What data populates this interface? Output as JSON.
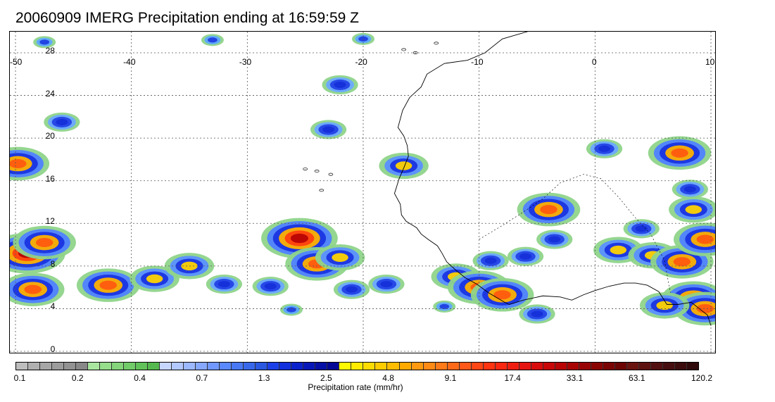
{
  "title": "20060909 IMERG Precipitation ending at 16:59:59 Z",
  "map": {
    "lon_labels": [
      "-50",
      "-40",
      "-30",
      "-20",
      "-10",
      "0",
      "10"
    ],
    "lon_values": [
      -50,
      -40,
      -30,
      -20,
      -10,
      0,
      10
    ],
    "lat_labels": [
      "28",
      "24",
      "20",
      "16",
      "12",
      "8",
      "4",
      "0"
    ],
    "lat_values": [
      28,
      24,
      20,
      16,
      12,
      8,
      4,
      0
    ],
    "lon_range": [
      -50,
      10
    ],
    "lat_range": [
      -0.5,
      29.5
    ],
    "gridlines": "dotted",
    "coastline_color": "#000000"
  },
  "colorbar": {
    "title": "Precipitation rate (mm/hr)",
    "tick_labels": [
      "0.1",
      "0.2",
      "0.4",
      "0.7",
      "1.3",
      "2.5",
      "4.8",
      "9.1",
      "17.4",
      "33.1",
      "63.1",
      "120.2"
    ],
    "colors": [
      "#bdbdbd",
      "#b0b0b0",
      "#a6a6a6",
      "#9c9c9c",
      "#929292",
      "#888888",
      "#a8e6a0",
      "#96dd8c",
      "#84d47a",
      "#72cb69",
      "#62c25a",
      "#54b84e",
      "#c6d6ff",
      "#b2c8ff",
      "#9cb8ff",
      "#86a8ff",
      "#7098ff",
      "#5a88ff",
      "#4878f4",
      "#3868ea",
      "#2a58e0",
      "#1c40e8",
      "#1230dc",
      "#0a22cc",
      "#0818b8",
      "#0610a6",
      "#040894",
      "#fffa00",
      "#ffec00",
      "#ffdc00",
      "#ffcc00",
      "#ffbc00",
      "#ffaa00",
      "#ff9a10",
      "#ff8a14",
      "#ff7a18",
      "#ff6a18",
      "#ff5818",
      "#ff4614",
      "#ff3410",
      "#fa2810",
      "#f01e10",
      "#e41410",
      "#d80c0c",
      "#c80808",
      "#b80404",
      "#a80404",
      "#980404",
      "#8a0404",
      "#7a0404",
      "#6c0404",
      "#6a1410",
      "#5e1210",
      "#521010",
      "#460e0e",
      "#3c0c0c",
      "#300a0a"
    ]
  },
  "precip_cells": [
    {
      "lon": -49,
      "lat": 9.2,
      "level": 4
    },
    {
      "lon": -47.5,
      "lat": 10.2,
      "level": 3
    },
    {
      "lon": -48.5,
      "lat": 5.8,
      "level": 3
    },
    {
      "lon": -49.8,
      "lat": 17.6,
      "level": 3
    },
    {
      "lon": -46,
      "lat": 21.5,
      "level": 1
    },
    {
      "lon": -42,
      "lat": 6.2,
      "level": 3
    },
    {
      "lon": -38,
      "lat": 6.8,
      "level": 2
    },
    {
      "lon": -35,
      "lat": 8.0,
      "level": 2
    },
    {
      "lon": -32,
      "lat": 6.3,
      "level": 1
    },
    {
      "lon": -28,
      "lat": 6.1,
      "level": 1
    },
    {
      "lon": -25.5,
      "lat": 10.6,
      "level": 4
    },
    {
      "lon": -24,
      "lat": 8.2,
      "level": 3
    },
    {
      "lon": -22,
      "lat": 8.8,
      "level": 2
    },
    {
      "lon": -21,
      "lat": 5.8,
      "level": 1
    },
    {
      "lon": -18,
      "lat": 6.3,
      "level": 1
    },
    {
      "lon": -26.2,
      "lat": 3.9,
      "level": 0
    },
    {
      "lon": -22,
      "lat": 25.0,
      "level": 1
    },
    {
      "lon": -23,
      "lat": 20.8,
      "level": 1
    },
    {
      "lon": -16.5,
      "lat": 17.4,
      "level": 2
    },
    {
      "lon": -12,
      "lat": 7.0,
      "level": 2
    },
    {
      "lon": -10,
      "lat": 6.0,
      "level": 3
    },
    {
      "lon": -8,
      "lat": 5.3,
      "level": 3
    },
    {
      "lon": -9,
      "lat": 8.5,
      "level": 1
    },
    {
      "lon": -4,
      "lat": 13.3,
      "level": 3
    },
    {
      "lon": -3.5,
      "lat": 10.5,
      "level": 1
    },
    {
      "lon": -6,
      "lat": 8.9,
      "level": 1
    },
    {
      "lon": 2,
      "lat": 9.5,
      "level": 2
    },
    {
      "lon": 5,
      "lat": 9.0,
      "level": 2
    },
    {
      "lon": 7.5,
      "lat": 8.4,
      "level": 3
    },
    {
      "lon": 8.5,
      "lat": 13.3,
      "level": 2
    },
    {
      "lon": 7.3,
      "lat": 18.6,
      "level": 3
    },
    {
      "lon": 8.5,
      "lat": 5.0,
      "level": 3
    },
    {
      "lon": 9.5,
      "lat": 4.0,
      "level": 3
    },
    {
      "lon": 6,
      "lat": 4.3,
      "level": 2
    },
    {
      "lon": 9.5,
      "lat": 10.5,
      "level": 3
    },
    {
      "lon": 8.2,
      "lat": 15.2,
      "level": 1
    },
    {
      "lon": 0.8,
      "lat": 19.0,
      "level": 1
    },
    {
      "lon": 4,
      "lat": 11.5,
      "level": 1
    },
    {
      "lon": -5,
      "lat": 3.5,
      "level": 1
    },
    {
      "lon": -13,
      "lat": 4.2,
      "level": 0
    },
    {
      "lon": -47.5,
      "lat": 29.0,
      "level": 0
    },
    {
      "lon": -33,
      "lat": 29.2,
      "level": 0
    },
    {
      "lon": -20,
      "lat": 29.3,
      "level": 0
    }
  ]
}
